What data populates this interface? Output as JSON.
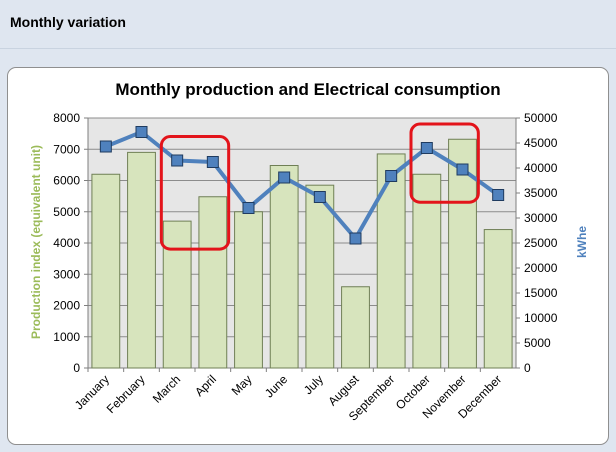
{
  "page": {
    "header": "Monthly variation"
  },
  "colors": {
    "bar_fill": "#d7e4bd",
    "bar_stroke": "#6f7f55",
    "line": "#4f81bd",
    "marker": "#4f81bd",
    "highlight": "#e3141b",
    "plot_bg": "#e6e6e6",
    "y1_title": "#9bbb59",
    "y2_title": "#4f81bd"
  },
  "chart_data": {
    "type": "bar",
    "title": "Monthly production and Electrical consumption",
    "categories": [
      "January",
      "February",
      "March",
      "April",
      "May",
      "June",
      "July",
      "August",
      "September",
      "October",
      "November",
      "December"
    ],
    "series": [
      {
        "name": "",
        "type": "bar",
        "axis": "left",
        "values": [
          6200,
          6900,
          4700,
          5480,
          5000,
          6480,
          5850,
          2600,
          6850,
          6200,
          7320,
          4430
        ]
      },
      {
        "name": "",
        "type": "line",
        "axis": "right",
        "values": [
          44300,
          47200,
          41500,
          41200,
          32000,
          38100,
          34200,
          25900,
          38400,
          44000,
          39700,
          34600
        ]
      }
    ],
    "ylabel": "Production index (equivalent unit)",
    "y2label": "kWhe",
    "ylim": [
      0,
      8000
    ],
    "y2lim": [
      0,
      50000
    ],
    "yticks": [
      "0",
      "1000",
      "2000",
      "3000",
      "4000",
      "5000",
      "6000",
      "7000",
      "8000"
    ],
    "y2ticks": [
      "0",
      "5000",
      "10000",
      "15000",
      "20000",
      "25000",
      "30000",
      "35000",
      "40000",
      "45000",
      "50000"
    ],
    "grid": true,
    "highlighted_months": [
      [
        "March",
        "April"
      ],
      [
        "October",
        "November"
      ]
    ]
  }
}
